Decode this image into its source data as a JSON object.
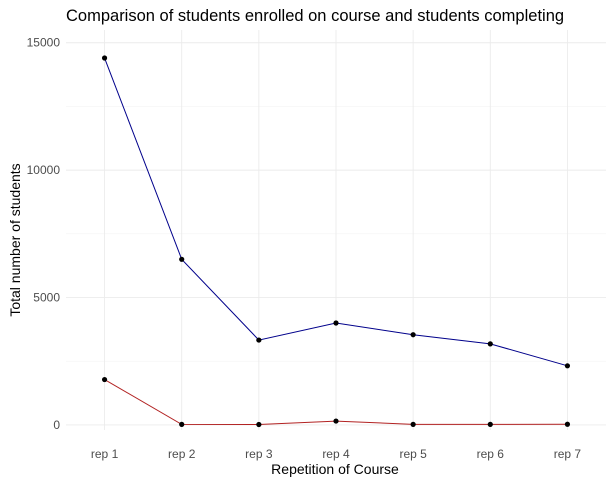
{
  "chart_data": {
    "type": "line",
    "title": "Comparison of students enrolled on course and students completing",
    "xlabel": "Repetition of Course",
    "ylabel": "Total number of students",
    "categories": [
      "rep 1",
      "rep 2",
      "rep 3",
      "rep 4",
      "rep 5",
      "rep 6",
      "rep 7"
    ],
    "ylim": [
      -200,
      15500
    ],
    "yticks": [
      0,
      5000,
      10000,
      15000
    ],
    "grid": true,
    "legend": "none",
    "series": [
      {
        "values": [
          14400,
          6500,
          3330,
          4000,
          3540,
          3180,
          2320
        ],
        "color": "#00008b"
      },
      {
        "values": [
          1780,
          20,
          15,
          150,
          20,
          20,
          25
        ],
        "color": "#b22222"
      }
    ],
    "point_color": "#000000"
  }
}
